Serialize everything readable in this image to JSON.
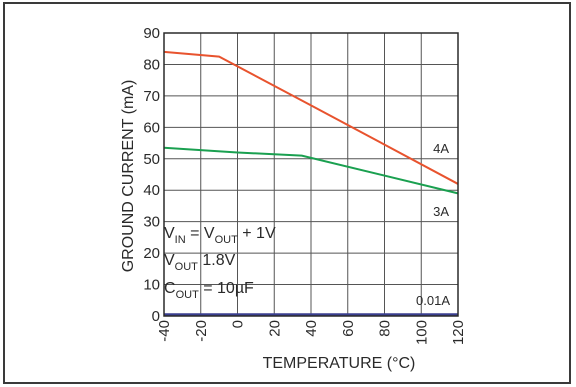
{
  "chart_data": {
    "type": "line",
    "title": "",
    "xlabel": "TEMPERATURE (°C)",
    "ylabel": "GROUND CURRENT (mA)",
    "xlim": [
      -40,
      120
    ],
    "ylim": [
      0,
      90
    ],
    "x_ticks": [
      -40,
      -20,
      0,
      20,
      40,
      60,
      80,
      100,
      120
    ],
    "y_ticks": [
      0,
      10,
      20,
      30,
      40,
      50,
      60,
      70,
      80,
      90
    ],
    "grid": true,
    "colors": {
      "4A": "#e8532e",
      "3A": "#1aa050",
      "0.01A": "#3a3f8f",
      "grid": "#555555",
      "background": "#ffffff"
    },
    "series": [
      {
        "name": "4A",
        "x": [
          -40,
          -10,
          40,
          120
        ],
        "y": [
          84,
          82.5,
          67,
          42
        ]
      },
      {
        "name": "3A",
        "x": [
          -40,
          0,
          35,
          120
        ],
        "y": [
          53.5,
          52,
          51,
          39
        ]
      },
      {
        "name": "0.01A",
        "x": [
          -40,
          120
        ],
        "y": [
          0.4,
          0.4
        ]
      }
    ],
    "annotations": {
      "vin": {
        "a": "V",
        "b": "IN",
        "c": " = V",
        "d": "OUT",
        "e": " + 1V"
      },
      "vout": {
        "a": "V",
        "b": "OUT",
        "c": " 1.8V"
      },
      "cout": {
        "a": "C",
        "b": "OUT",
        "c": " = 10µF"
      }
    }
  }
}
